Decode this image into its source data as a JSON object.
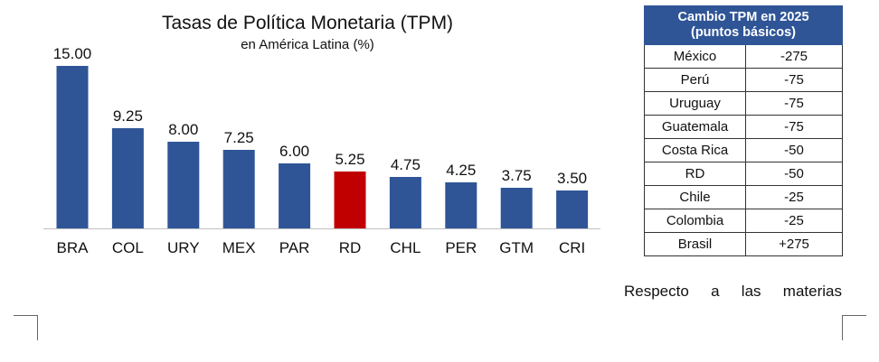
{
  "chart_data": {
    "type": "bar",
    "title": "Tasas de Política Monetaria (TPM)",
    "subtitle": "en América Latina (%)",
    "categories": [
      "BRA",
      "COL",
      "URY",
      "MEX",
      "PAR",
      "RD",
      "CHL",
      "PER",
      "GTM",
      "CRI"
    ],
    "values": [
      15.0,
      9.25,
      8.0,
      7.25,
      6.0,
      5.25,
      4.75,
      4.25,
      3.75,
      3.5
    ],
    "labels": [
      "15.00",
      "9.25",
      "8.00",
      "7.25",
      "6.00",
      "5.25",
      "4.75",
      "4.25",
      "3.75",
      "3.50"
    ],
    "highlight": "RD",
    "colors": {
      "default": "#2f5597",
      "highlight": "#c00000"
    },
    "ylim": [
      0,
      15
    ],
    "grid": false,
    "xlabel": "",
    "ylabel": ""
  },
  "table": {
    "header": [
      "Cambio TPM en 2025",
      "(puntos básicos)"
    ],
    "rows": [
      [
        "México",
        "-275"
      ],
      [
        "Perú",
        "-75"
      ],
      [
        "Uruguay",
        "-75"
      ],
      [
        "Guatemala",
        "-75"
      ],
      [
        "Costa Rica",
        "-50"
      ],
      [
        "RD",
        "-50"
      ],
      [
        "Chile",
        "-25"
      ],
      [
        "Colombia",
        "-25"
      ],
      [
        "Brasil",
        "+275"
      ]
    ]
  },
  "body_text": "Respecto a las materias"
}
